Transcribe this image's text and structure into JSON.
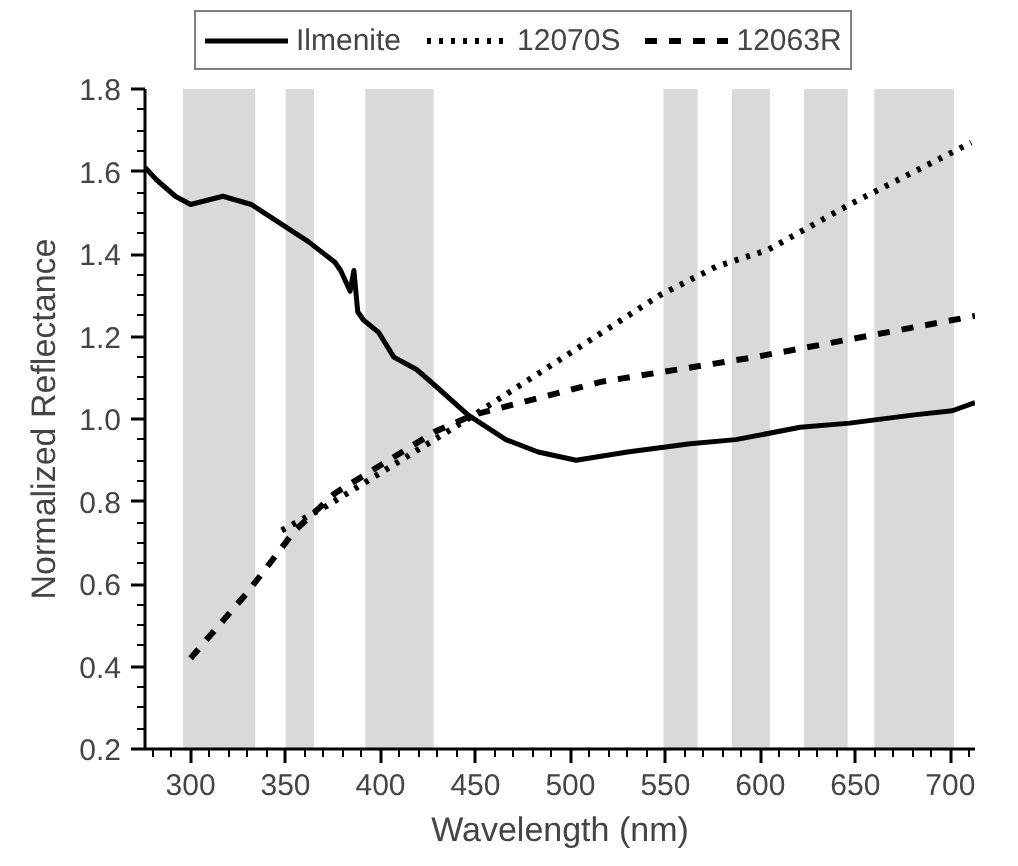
{
  "chart_data": {
    "type": "line",
    "xlabel": "Wavelength (nm)",
    "ylabel": "Normalized Reflectance",
    "xlim": [
      276,
      713
    ],
    "ylim": [
      0.2,
      1.8
    ],
    "xticks": [
      300,
      350,
      400,
      450,
      500,
      550,
      600,
      650,
      700
    ],
    "yticks": [
      0.2,
      0.4,
      0.6,
      0.8,
      {
        "value": 1.0,
        "label": "1.0"
      },
      1.2,
      1.4,
      1.6,
      1.8
    ],
    "grid": false,
    "legend": "top",
    "marker": "none",
    "bands": [
      {
        "axis": "x",
        "from": 296,
        "to": 334,
        "color": "#d9d9d9"
      },
      {
        "axis": "x",
        "from": 350,
        "to": 365,
        "color": "#d9d9d9"
      },
      {
        "axis": "x",
        "from": 392,
        "to": 428,
        "color": "#d9d9d9"
      },
      {
        "axis": "x",
        "from": 549,
        "to": 567,
        "color": "#d9d9d9"
      },
      {
        "axis": "x",
        "from": 585,
        "to": 605,
        "color": "#d9d9d9"
      },
      {
        "axis": "x",
        "from": 623,
        "to": 646,
        "color": "#d9d9d9"
      },
      {
        "axis": "x",
        "from": 660,
        "to": 702,
        "color": "#d9d9d9"
      }
    ],
    "series": [
      {
        "name": "Ilmenite",
        "color": "#000000",
        "line_style": "solid",
        "x": [
          276,
          282,
          292,
          300,
          317,
          332,
          342,
          362,
          376,
          379,
          384,
          386,
          388,
          391,
          399,
          407,
          419,
          429,
          446,
          466,
          483,
          503,
          530,
          563,
          587,
          621,
          647,
          681,
          701,
          713
        ],
        "values": [
          1.61,
          1.58,
          1.54,
          1.52,
          1.54,
          1.52,
          1.49,
          1.43,
          1.38,
          1.36,
          1.31,
          1.36,
          1.26,
          1.24,
          1.21,
          1.15,
          1.12,
          1.08,
          1.01,
          0.95,
          0.92,
          0.9,
          0.92,
          0.94,
          0.95,
          0.98,
          0.99,
          1.01,
          1.02,
          1.04
        ]
      },
      {
        "name": "12070S",
        "color": "#000000",
        "line_style": "dotted",
        "x": [
          348,
          372,
          446,
          547,
          577,
          604,
          647,
          711
        ],
        "values": [
          0.73,
          0.79,
          1.0,
          1.3,
          1.37,
          1.41,
          1.52,
          1.67
        ]
      },
      {
        "name": "12063R",
        "color": "#000000",
        "line_style": "dashed",
        "x": [
          300,
          330,
          355,
          376,
          429,
          449,
          516,
          597,
          713
        ],
        "values": [
          0.42,
          0.58,
          0.73,
          0.82,
          0.97,
          1.01,
          1.09,
          1.15,
          1.25
        ]
      }
    ]
  }
}
